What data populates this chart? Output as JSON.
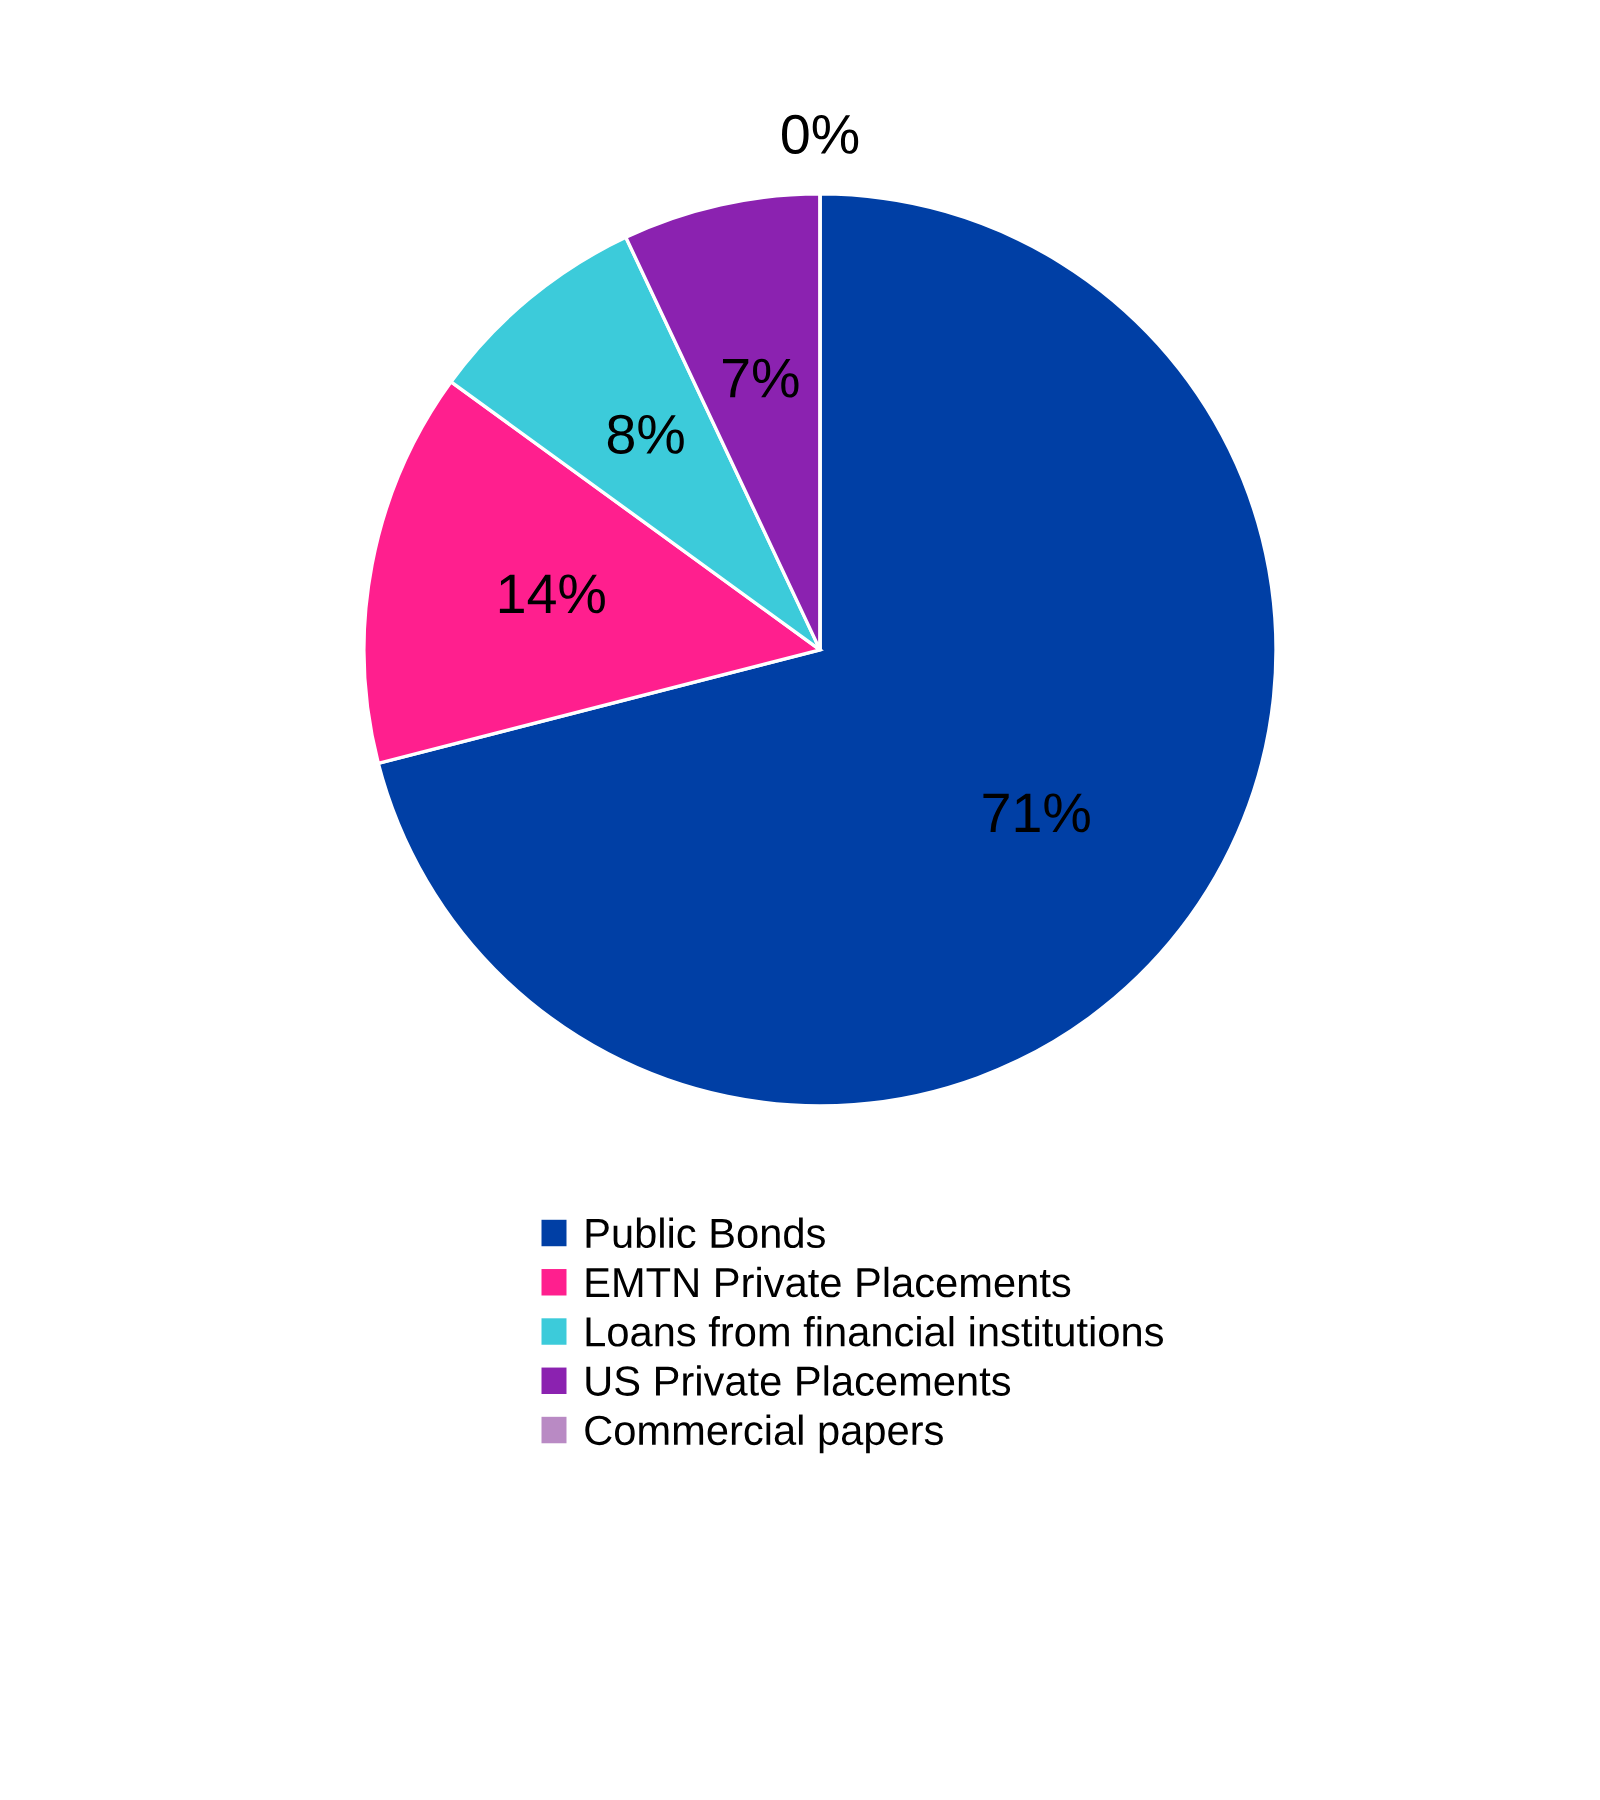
{
  "chart_data": {
    "type": "pie",
    "categories": [
      "Public Bonds",
      "EMTN Private Placements",
      "Loans from financial institutions",
      "US Private Placements",
      "Commercial papers"
    ],
    "values": [
      71,
      14,
      8,
      7,
      0
    ],
    "colors": [
      "#003fa5",
      "#ff1f8e",
      "#3ccbda",
      "#8b22b0",
      "#b98ac4"
    ],
    "value_labels": [
      "71%",
      "14%",
      "8%",
      "7%",
      "0%"
    ],
    "legend": "bottom"
  }
}
